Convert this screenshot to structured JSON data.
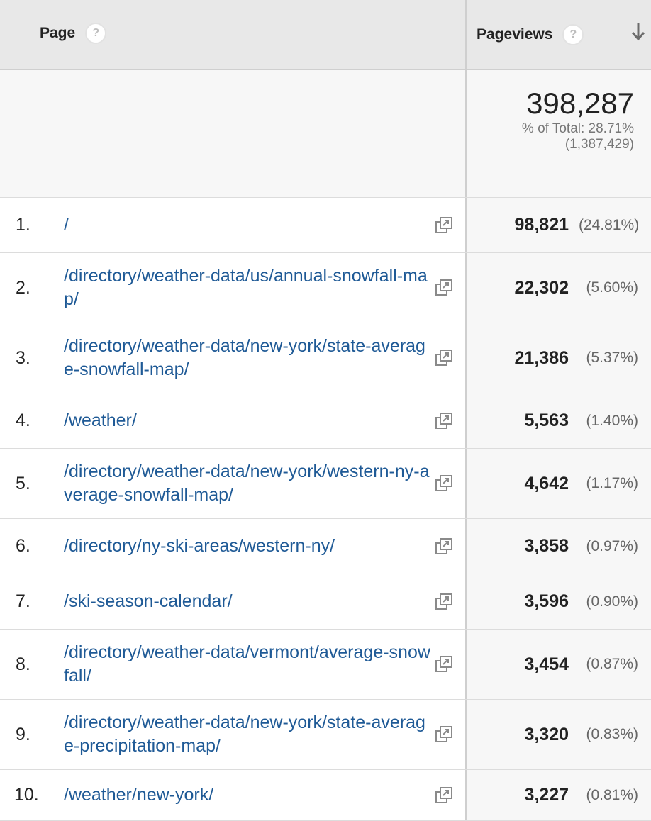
{
  "header": {
    "page_label": "Page",
    "pageviews_label": "Pageviews",
    "help_glyph": "?"
  },
  "summary": {
    "total": "398,287",
    "pct_of_total": "% of Total: 28.71%",
    "grand_total": "(1,387,429)"
  },
  "rows": [
    {
      "index": "1.",
      "page": "/",
      "pageviews": "98,821",
      "percent": "(24.81%)"
    },
    {
      "index": "2.",
      "page": "/directory/weather-data/us/annual-snowfall-map/",
      "pageviews": "22,302",
      "percent": "(5.60%)"
    },
    {
      "index": "3.",
      "page": "/directory/weather-data/new-york/state-average-snowfall-map/",
      "pageviews": "21,386",
      "percent": "(5.37%)"
    },
    {
      "index": "4.",
      "page": "/weather/",
      "pageviews": "5,563",
      "percent": "(1.40%)"
    },
    {
      "index": "5.",
      "page": "/directory/weather-data/new-york/western-ny-average-snowfall-map/",
      "pageviews": "4,642",
      "percent": "(1.17%)"
    },
    {
      "index": "6.",
      "page": "/directory/ny-ski-areas/western-ny/",
      "pageviews": "3,858",
      "percent": "(0.97%)"
    },
    {
      "index": "7.",
      "page": "/ski-season-calendar/",
      "pageviews": "3,596",
      "percent": "(0.90%)"
    },
    {
      "index": "8.",
      "page": "/directory/weather-data/vermont/average-snowfall/",
      "pageviews": "3,454",
      "percent": "(0.87%)"
    },
    {
      "index": "9.",
      "page": "/directory/weather-data/new-york/state-average-precipitation-map/",
      "pageviews": "3,320",
      "percent": "(0.83%)"
    },
    {
      "index": "10.",
      "page": "/weather/new-york/",
      "pageviews": "3,227",
      "percent": "(0.81%)"
    }
  ],
  "icons": {
    "help": "question-circle-icon",
    "sort": "arrow-down-icon",
    "open_link": "external-link-icon"
  },
  "colors": {
    "link": "#1f5a96",
    "header_bg": "#e8e8e8"
  }
}
